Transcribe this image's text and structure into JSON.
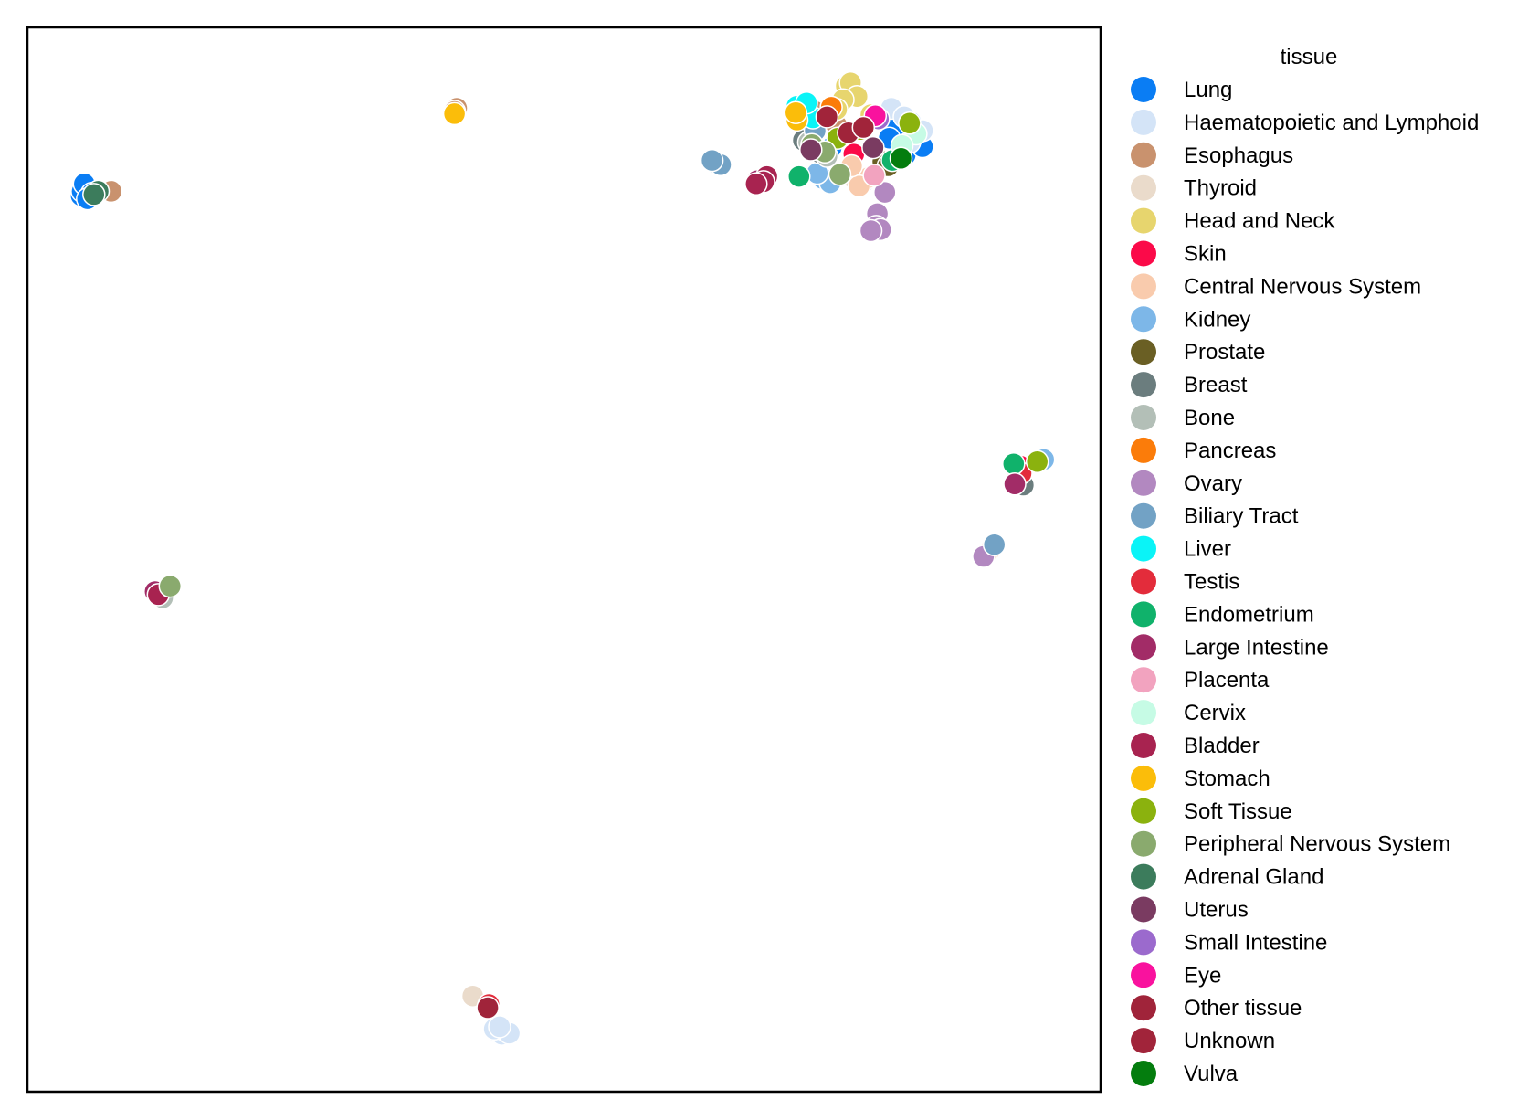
{
  "chart_data": {
    "type": "scatter",
    "title": "",
    "xlabel": "",
    "ylabel": "",
    "axis_ticks": false,
    "grid": false,
    "xlim": [
      0,
      100
    ],
    "ylim": [
      0,
      100
    ],
    "legend": {
      "title": "tissue",
      "placement": "outside-right"
    },
    "series": [
      {
        "name": "Lung",
        "color": "#0a7df4",
        "points": [
          [
            5.0,
            84.2
          ],
          [
            5.1,
            84.6
          ],
          [
            5.3,
            85.3
          ],
          [
            6.0,
            84.4
          ],
          [
            5.6,
            83.9
          ],
          [
            81.0,
            90.6
          ],
          [
            80.3,
            89.6
          ],
          [
            82.3,
            91.1
          ],
          [
            74.9,
            88.7
          ],
          [
            81.8,
            88.0
          ],
          [
            83.4,
            88.8
          ]
        ]
      },
      {
        "name": "Haematopoietic and Lymphoid",
        "color": "#d4e4f7",
        "points": [
          [
            43.8,
            5.6
          ],
          [
            44.2,
            5.4
          ],
          [
            44.6,
            5.7
          ],
          [
            43.5,
            5.9
          ],
          [
            44.9,
            5.5
          ],
          [
            44.0,
            6.1
          ],
          [
            80.5,
            92.4
          ],
          [
            81.7,
            91.6
          ],
          [
            83.4,
            90.3
          ],
          [
            82.2,
            89.2
          ],
          [
            78.1,
            85.6
          ],
          [
            76.9,
            86.2
          ]
        ]
      },
      {
        "name": "Esophagus",
        "color": "#c9926e",
        "points": [
          [
            7.8,
            84.6
          ],
          [
            40.0,
            92.4
          ],
          [
            39.8,
            92.1
          ],
          [
            75.4,
            90.8
          ],
          [
            73.4,
            92.1
          ]
        ]
      },
      {
        "name": "Thyroid",
        "color": "#eadbcb",
        "points": [
          [
            41.5,
            9.0
          ],
          [
            76.9,
            85.9
          ],
          [
            75.7,
            86.3
          ]
        ]
      },
      {
        "name": "Head and Neck",
        "color": "#e7d56e",
        "points": [
          [
            76.3,
            94.5
          ],
          [
            76.7,
            94.8
          ],
          [
            77.3,
            93.5
          ],
          [
            76.0,
            93.2
          ],
          [
            75.4,
            92.3
          ],
          [
            78.6,
            91.8
          ]
        ]
      },
      {
        "name": "Skin",
        "color": "#fb0a49",
        "points": [
          [
            77.0,
            88.1
          ],
          [
            92.3,
            58.3
          ],
          [
            92.5,
            58.8
          ]
        ]
      },
      {
        "name": "Central Nervous System",
        "color": "#f9cbad",
        "points": [
          [
            78.4,
            85.9
          ],
          [
            77.5,
            85.1
          ],
          [
            89.6,
            50.8
          ],
          [
            89.3,
            50.5
          ],
          [
            76.8,
            87.0
          ]
        ]
      },
      {
        "name": "Kidney",
        "color": "#7db7e8",
        "points": [
          [
            74.1,
            85.8
          ],
          [
            74.8,
            85.4
          ],
          [
            94.7,
            59.4
          ],
          [
            73.6,
            86.3
          ],
          [
            80.4,
            87.4
          ]
        ]
      },
      {
        "name": "Prostate",
        "color": "#6a5f24",
        "points": [
          [
            79.7,
            87.4
          ],
          [
            80.2,
            87.0
          ]
        ]
      },
      {
        "name": "Breast",
        "color": "#6b7d7e",
        "points": [
          [
            92.8,
            57.0
          ],
          [
            72.9,
            88.9
          ],
          [
            73.9,
            88.2
          ],
          [
            72.3,
            89.4
          ]
        ]
      },
      {
        "name": "Bone",
        "color": "#b3bfb7",
        "points": [
          [
            12.6,
            46.4
          ],
          [
            73.7,
            88.5
          ],
          [
            74.5,
            87.9
          ],
          [
            72.8,
            89.2
          ]
        ]
      },
      {
        "name": "Pancreas",
        "color": "#fb7c0a",
        "points": [
          [
            74.9,
            92.5
          ]
        ]
      },
      {
        "name": "Ovary",
        "color": "#b288c0",
        "points": [
          [
            79.2,
            82.5
          ],
          [
            79.1,
            81.3
          ],
          [
            79.5,
            81.0
          ],
          [
            79.9,
            84.5
          ],
          [
            89.1,
            50.3
          ],
          [
            78.6,
            80.9
          ]
        ]
      },
      {
        "name": "Biliary Tract",
        "color": "#72a2c5",
        "points": [
          [
            64.1,
            87.3
          ],
          [
            64.6,
            87.1
          ],
          [
            63.8,
            87.5
          ],
          [
            90.1,
            51.4
          ],
          [
            73.4,
            90.3
          ]
        ]
      },
      {
        "name": "Liver",
        "color": "#0af4f7",
        "points": [
          [
            71.7,
            92.6
          ],
          [
            73.2,
            91.5
          ],
          [
            72.6,
            92.9
          ]
        ]
      },
      {
        "name": "Testis",
        "color": "#e32c3b",
        "points": [
          [
            92.6,
            58.1
          ],
          [
            43.0,
            8.2
          ]
        ]
      },
      {
        "name": "Endometrium",
        "color": "#10b26b",
        "points": [
          [
            91.9,
            59.0
          ],
          [
            71.9,
            86.0
          ],
          [
            80.6,
            87.5
          ]
        ]
      },
      {
        "name": "Large Intestine",
        "color": "#a22c67",
        "points": [
          [
            92.0,
            57.1
          ],
          [
            11.9,
            47.0
          ],
          [
            68.0,
            85.6
          ]
        ]
      },
      {
        "name": "Placenta",
        "color": "#f2a3bf",
        "points": [
          [
            78.9,
            86.1
          ]
        ]
      },
      {
        "name": "Cervix",
        "color": "#c6fbe5",
        "points": [
          [
            82.8,
            90.0
          ],
          [
            81.5,
            88.9
          ]
        ]
      },
      {
        "name": "Bladder",
        "color": "#a82350",
        "points": [
          [
            68.9,
            86.0
          ],
          [
            68.6,
            85.5
          ],
          [
            67.9,
            85.3
          ],
          [
            12.2,
            46.7
          ]
        ]
      },
      {
        "name": "Stomach",
        "color": "#fbbd0a",
        "points": [
          [
            71.7,
            91.3
          ],
          [
            71.6,
            92.0
          ],
          [
            39.8,
            91.9
          ]
        ]
      },
      {
        "name": "Soft Tissue",
        "color": "#8bb20e",
        "points": [
          [
            77.6,
            90.4
          ],
          [
            75.5,
            89.6
          ],
          [
            82.2,
            91.0
          ],
          [
            94.1,
            59.2
          ]
        ]
      },
      {
        "name": "Peripheral Nervous System",
        "color": "#8aaa6e",
        "points": [
          [
            13.3,
            47.5
          ],
          [
            73.1,
            89.0
          ],
          [
            75.7,
            86.2
          ],
          [
            74.3,
            88.3
          ]
        ]
      },
      {
        "name": "Adrenal Gland",
        "color": "#3c7c5c",
        "points": [
          [
            6.6,
            84.6
          ],
          [
            6.2,
            84.3
          ]
        ]
      },
      {
        "name": "Uterus",
        "color": "#7a3b61",
        "points": [
          [
            73.0,
            88.5
          ],
          [
            78.8,
            88.7
          ]
        ]
      },
      {
        "name": "Small Intestine",
        "color": "#9b6acd",
        "points": [
          [
            79.3,
            91.4
          ]
        ]
      },
      {
        "name": "Eye",
        "color": "#f9129e",
        "points": [
          [
            79.0,
            91.7
          ]
        ]
      },
      {
        "name": "Other tissue",
        "color": "#a0243a",
        "points": [
          [
            42.9,
            7.9
          ],
          [
            76.5,
            90.1
          ]
        ]
      },
      {
        "name": "Unknown",
        "color": "#a1243a",
        "points": [
          [
            77.9,
            90.6
          ],
          [
            74.5,
            91.6
          ]
        ]
      },
      {
        "name": "Vulva",
        "color": "#047d0e",
        "points": [
          [
            81.4,
            87.7
          ]
        ]
      }
    ]
  }
}
